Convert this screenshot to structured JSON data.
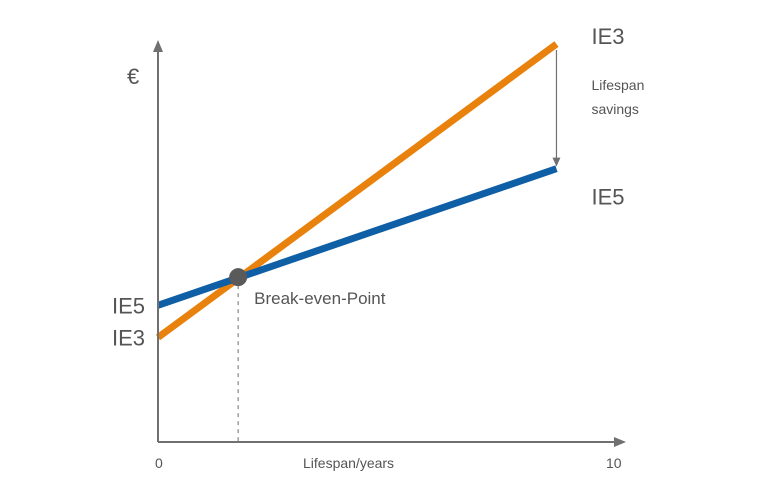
{
  "chart_data": {
    "type": "line",
    "title": "",
    "xlabel": "Lifespan/years",
    "ylabel": "€",
    "x_ticks": [
      "0",
      "10"
    ],
    "xlim": [
      0,
      10
    ],
    "ylim": [
      0,
      100
    ],
    "grid": false,
    "series": [
      {
        "name": "IE3",
        "color": "#E8820C",
        "points": [
          [
            0,
            26
          ],
          [
            8.7,
            99
          ]
        ]
      },
      {
        "name": "IE5",
        "color": "#0F5FA6",
        "points": [
          [
            0,
            34
          ],
          [
            8.7,
            68
          ]
        ]
      }
    ],
    "y_axis_labels": [
      {
        "text": "IE5",
        "y": 34
      },
      {
        "text": "IE3",
        "y": 26
      }
    ],
    "break_even": {
      "label": "Break-even-Point",
      "x": 1.75,
      "y": 41
    },
    "savings_annotation": {
      "lines": [
        "Lifespan",
        "savings"
      ],
      "x": 8.7,
      "from": 99,
      "to": 68
    },
    "colors": {
      "axis": "#707070",
      "point": "#5a5a5a",
      "text": "#555555"
    }
  }
}
